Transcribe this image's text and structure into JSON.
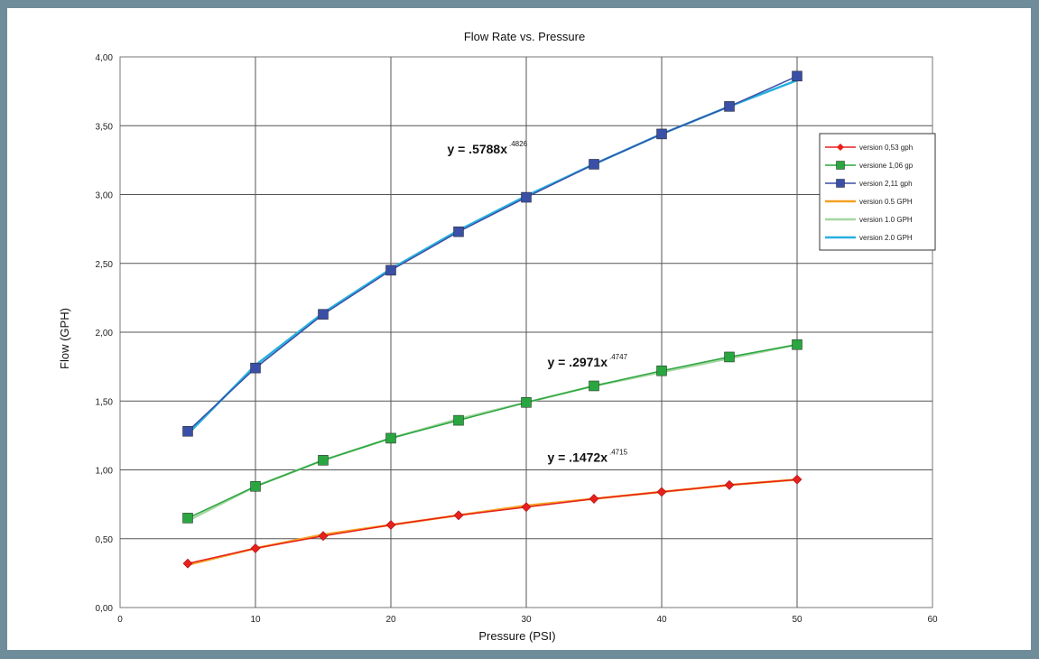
{
  "chart_data": {
    "type": "scatter",
    "title": "Flow Rate vs. Pressure",
    "xlabel": "Pressure (PSI)",
    "ylabel": "Flow (GPH)",
    "xlim": [
      0,
      60
    ],
    "ylim": [
      0,
      4
    ],
    "x_ticks": [
      "0",
      "10",
      "20",
      "30",
      "40",
      "50",
      "60"
    ],
    "y_ticks": [
      "0,00",
      "0,50",
      "1,00",
      "1,50",
      "2,00",
      "2,50",
      "3,00",
      "3,50",
      "4,00"
    ],
    "grid": true,
    "legend_position": "right",
    "x": [
      5,
      10,
      15,
      20,
      25,
      30,
      35,
      40,
      45,
      50
    ],
    "series": [
      {
        "name": "version 0,53 gph",
        "kind": "markers",
        "marker": "diamond",
        "color": "#e8201c",
        "values": [
          0.32,
          0.43,
          0.52,
          0.6,
          0.67,
          0.73,
          0.79,
          0.84,
          0.89,
          0.93
        ]
      },
      {
        "name": "versione 1,06 gp",
        "kind": "markers",
        "marker": "square",
        "color": "#2aa640",
        "values": [
          0.65,
          0.88,
          1.07,
          1.23,
          1.36,
          1.49,
          1.61,
          1.72,
          1.82,
          1.91
        ]
      },
      {
        "name": "version 2,11 gph",
        "kind": "markers",
        "marker": "square",
        "color": "#3a4fa6",
        "values": [
          1.28,
          1.74,
          2.13,
          2.45,
          2.73,
          2.98,
          3.22,
          3.44,
          3.64,
          3.86
        ]
      },
      {
        "name": "version 0.5 GPH",
        "kind": "line",
        "color": "#f5a023",
        "values": [
          0.31,
          0.43,
          0.53,
          0.6,
          0.67,
          0.74,
          0.79,
          0.84,
          0.89,
          0.93
        ]
      },
      {
        "name": "version 1.0 GPH",
        "kind": "line",
        "color": "#a5d6a0",
        "values": [
          0.63,
          0.88,
          1.07,
          1.23,
          1.37,
          1.49,
          1.61,
          1.71,
          1.81,
          1.91
        ]
      },
      {
        "name": "version 2.0 GPH",
        "kind": "line",
        "color": "#28b0e0",
        "values": [
          1.26,
          1.76,
          2.14,
          2.46,
          2.74,
          2.99,
          3.22,
          3.44,
          3.64,
          3.83
        ]
      }
    ],
    "annotations": [
      {
        "text": "y = .5788x",
        "exponent": ".4826",
        "x": 28.6,
        "y": 3.3
      },
      {
        "text": "y = .2971x",
        "exponent": ".4747",
        "x": 36,
        "y": 1.75
      },
      {
        "text": "y = .1472x",
        "exponent": ".4715",
        "x": 36,
        "y": 1.06
      }
    ]
  }
}
